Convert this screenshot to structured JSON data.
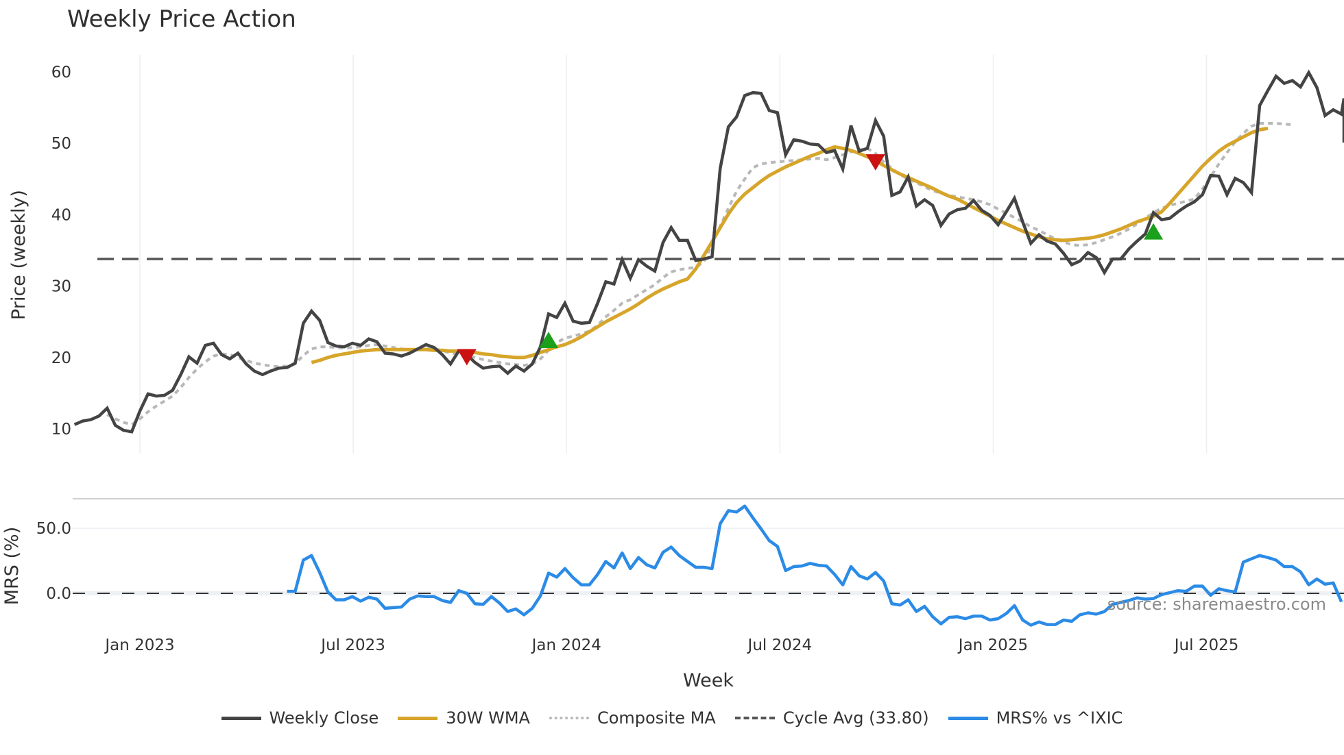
{
  "title": "Weekly Price Action",
  "source_note": "source: sharemaestro.com",
  "legend": [
    {
      "label": "Weekly Close",
      "color": "#444444",
      "style": "solid"
    },
    {
      "label": "30W WMA",
      "color": "#d6a52a",
      "style": "solid"
    },
    {
      "label": "Composite MA",
      "color": "#b8b8b8",
      "style": "dotted"
    },
    {
      "label": "Cycle Avg (33.80)",
      "color": "#555555",
      "style": "dashed"
    },
    {
      "label": "MRS% vs ^IXIC",
      "color": "#2b8be6",
      "style": "solid"
    }
  ],
  "chart_data": [
    {
      "type": "line",
      "title": "Weekly Price Action",
      "xlabel": "Week",
      "ylabel": "Price (weekly)",
      "ylim": [
        8,
        62
      ],
      "yticks": [
        10,
        20,
        30,
        40,
        50,
        60
      ],
      "xticks": [
        "Jan 2023",
        "Jul 2023",
        "Jan 2024",
        "Jul 2024",
        "Jan 2025",
        "Jul 2025"
      ],
      "x_start_week_offset": -8,
      "grid": true,
      "series": [
        {
          "name": "Weekly Close",
          "color": "#444444",
          "values": [
            10.6,
            11.1,
            11.3,
            11.8,
            12.9,
            10.5,
            9.8,
            9.6,
            12.5,
            14.9,
            14.6,
            14.7,
            15.4,
            17.6,
            20.1,
            19.2,
            21.7,
            22.0,
            20.4,
            19.8,
            20.6,
            19.1,
            18.1,
            17.6,
            18.1,
            18.5,
            18.6,
            19.2,
            24.8,
            26.5,
            25.2,
            22.1,
            21.6,
            21.5,
            22.0,
            21.7,
            22.6,
            22.2,
            20.6,
            20.5,
            20.2,
            20.6,
            21.2,
            21.8,
            21.4,
            20.4,
            19.1,
            20.9,
            20.4,
            19.3,
            18.5,
            18.7,
            18.8,
            17.8,
            18.8,
            18.1,
            19.1,
            21.5,
            26.1,
            25.6,
            27.6,
            25.1,
            24.8,
            24.9,
            27.6,
            30.6,
            30.3,
            33.7,
            31.1,
            33.7,
            32.8,
            32.1,
            36.1,
            38.2,
            36.4,
            36.4,
            33.6,
            33.8,
            34.1,
            46.5,
            52.3,
            53.7,
            56.7,
            57.1,
            57.0,
            54.6,
            54.3,
            48.4,
            50.5,
            50.3,
            49.9,
            49.8,
            48.7,
            49.0,
            46.4,
            52.5,
            48.9,
            49.3,
            53.2,
            51.0,
            42.7,
            43.2,
            45.3,
            41.2,
            42.1,
            41.3,
            38.5,
            40.1,
            40.7,
            40.9,
            42.0,
            40.6,
            39.9,
            38.6,
            40.4,
            42.3,
            39.0,
            36.0,
            37.2,
            36.3,
            35.9,
            34.6,
            33.0,
            33.5,
            34.7,
            34.0,
            31.9,
            33.8,
            33.8,
            35.2,
            36.3,
            37.3,
            40.3,
            39.3,
            39.5,
            40.4,
            41.2,
            41.8,
            42.8,
            45.5,
            45.4,
            42.8,
            45.1,
            44.5,
            43.1,
            55.3,
            57.4,
            59.4,
            58.4,
            58.8,
            57.9,
            59.9,
            57.8,
            53.9,
            54.7,
            54.1,
            56.3,
            50.1
          ]
        },
        {
          "name": "30W WMA",
          "color": "#d6a52a",
          "values": [
            null,
            null,
            null,
            null,
            null,
            null,
            null,
            null,
            null,
            null,
            null,
            null,
            null,
            null,
            null,
            null,
            null,
            null,
            null,
            null,
            null,
            null,
            null,
            null,
            null,
            null,
            null,
            null,
            null,
            19.3,
            19.6,
            20.0,
            20.3,
            20.5,
            20.7,
            20.9,
            21.0,
            21.1,
            21.1,
            21.1,
            21.1,
            21.1,
            21.1,
            21.1,
            21.0,
            21.0,
            20.9,
            20.9,
            20.8,
            20.7,
            20.5,
            20.4,
            20.2,
            20.1,
            20.0,
            20.0,
            20.3,
            20.7,
            21.1,
            21.5,
            21.8,
            22.3,
            22.9,
            23.6,
            24.3,
            25.0,
            25.6,
            26.2,
            26.8,
            27.5,
            28.3,
            29.0,
            29.6,
            30.1,
            30.6,
            31.0,
            32.4,
            34.3,
            36.2,
            38.2,
            40.1,
            41.7,
            42.9,
            43.8,
            44.7,
            45.5,
            46.1,
            46.7,
            47.2,
            47.7,
            48.2,
            48.6,
            49.1,
            49.5,
            49.3,
            49.0,
            48.6,
            48.1,
            47.6,
            46.9,
            46.3,
            45.7,
            45.2,
            44.7,
            44.2,
            43.7,
            43.1,
            42.6,
            42.2,
            41.6,
            41.0,
            40.4,
            39.8,
            39.2,
            38.7,
            38.2,
            37.7,
            37.3,
            36.9,
            36.6,
            36.5,
            36.4,
            36.5,
            36.6,
            36.7,
            36.9,
            37.2,
            37.6,
            38.0,
            38.5,
            39.0,
            39.4,
            39.8,
            40.4,
            41.6,
            42.9,
            44.2,
            45.5,
            46.8,
            47.9,
            48.9,
            49.7,
            50.3,
            50.9,
            51.5,
            51.9,
            52.1
          ]
        },
        {
          "name": "Composite MA",
          "color": "#b8b8b8",
          "values": [
            null,
            null,
            null,
            null,
            12.0,
            11.4,
            10.9,
            10.6,
            11.4,
            12.4,
            13.2,
            13.9,
            14.6,
            15.8,
            17.2,
            18.4,
            19.4,
            20.2,
            20.5,
            20.4,
            20.0,
            19.6,
            19.2,
            19.0,
            18.8,
            18.7,
            18.8,
            19.1,
            20.3,
            21.2,
            21.5,
            21.5,
            21.4,
            21.3,
            21.4,
            21.5,
            21.7,
            21.8,
            21.6,
            21.4,
            21.2,
            21.1,
            21.1,
            21.2,
            21.2,
            21.0,
            20.6,
            20.5,
            20.3,
            20.0,
            19.7,
            19.5,
            19.3,
            19.1,
            19.0,
            18.9,
            19.1,
            19.8,
            21.0,
            22.1,
            22.7,
            23.0,
            23.3,
            23.7,
            24.5,
            25.7,
            26.6,
            27.6,
            28.1,
            28.8,
            29.5,
            30.2,
            31.2,
            32.0,
            32.3,
            32.5,
            32.6,
            33.4,
            35.8,
            38.4,
            40.9,
            43.3,
            45.0,
            46.6,
            47.1,
            47.3,
            47.4,
            47.5,
            47.6,
            47.7,
            47.8,
            47.9,
            47.7,
            48.0,
            48.4,
            48.8,
            49.1,
            49.3,
            48.6,
            47.4,
            46.5,
            45.6,
            45.0,
            44.5,
            43.9,
            43.4,
            43.0,
            42.7,
            42.5,
            42.3,
            42.1,
            41.8,
            41.4,
            40.8,
            40.2,
            39.6,
            39.0,
            38.3,
            37.8,
            37.2,
            36.6,
            36.2,
            35.8,
            35.7,
            35.8,
            36.1,
            36.5,
            36.9,
            37.4,
            38.0,
            38.7,
            39.5,
            40.3,
            40.9,
            41.3,
            41.6,
            41.9,
            42.2,
            43.6,
            45.3,
            47.1,
            48.7,
            50.2,
            51.4,
            52.4,
            52.8,
            52.8,
            52.8,
            52.7,
            52.6
          ]
        },
        {
          "name": "Cycle Avg (33.80)",
          "color": "#555555",
          "constant": 33.8
        },
        {
          "name": "Signals",
          "points": [
            {
              "type": "sell",
              "shape": "down-triangle",
              "color": "#cc1111",
              "week_index": 48,
              "value": 20.1
            },
            {
              "type": "buy",
              "shape": "up-triangle",
              "color": "#1aa01a",
              "week_index": 58,
              "value": 22.4
            },
            {
              "type": "sell",
              "shape": "down-triangle",
              "color": "#cc1111",
              "week_index": 98,
              "value": 47.4
            },
            {
              "type": "buy",
              "shape": "up-triangle",
              "color": "#1aa01a",
              "week_index": 132,
              "value": 37.6
            }
          ]
        }
      ]
    },
    {
      "type": "line",
      "title": "",
      "xlabel": "Week",
      "ylabel": "MRS (%)",
      "ylim": [
        -28,
        75
      ],
      "yticks": [
        0.0,
        50.0
      ],
      "ytick_labels": [
        "0.0",
        "50.0"
      ],
      "series": [
        {
          "name": "MRS% vs ^IXIC",
          "color": "#2b8be6",
          "values": [
            null,
            null,
            null,
            null,
            null,
            null,
            null,
            null,
            null,
            null,
            null,
            null,
            null,
            null,
            null,
            null,
            null,
            null,
            null,
            null,
            null,
            null,
            null,
            null,
            null,
            null,
            1.5,
            1.5,
            25.5,
            29.0,
            16.0,
            1.0,
            -5.0,
            -5.0,
            -2.5,
            -6.0,
            -3.0,
            -4.5,
            -11.5,
            -11.0,
            -10.5,
            -4.5,
            -2.0,
            -2.5,
            -2.5,
            -5.5,
            -7.0,
            2.0,
            0.0,
            -8.0,
            -8.5,
            -2.5,
            -7.5,
            -14.0,
            -12.0,
            -16.5,
            -11.5,
            -2.0,
            15.5,
            12.5,
            19.0,
            12.0,
            6.5,
            6.5,
            14.5,
            24.5,
            19.5,
            31.0,
            19.0,
            27.5,
            22.0,
            19.5,
            31.5,
            35.5,
            29.0,
            24.5,
            20.0,
            20.0,
            19.0,
            53.5,
            63.5,
            62.5,
            67.0,
            58.0,
            49.5,
            40.5,
            36.0,
            17.5,
            20.5,
            21.0,
            23.0,
            21.5,
            21.0,
            14.5,
            6.5,
            20.5,
            13.5,
            11.0,
            16.0,
            9.5,
            -8.0,
            -9.0,
            -5.0,
            -14.0,
            -10.0,
            -18.0,
            -23.5,
            -18.5,
            -18.0,
            -19.5,
            -17.5,
            -17.5,
            -20.5,
            -19.5,
            -15.5,
            -9.5,
            -20.5,
            -24.5,
            -22.0,
            -24.0,
            -24.0,
            -20.5,
            -21.5,
            -16.5,
            -15.0,
            -16.0,
            -14.0,
            -8.5,
            -7.0,
            -5.5,
            -3.5,
            -4.5,
            -4.0,
            -1.0,
            0.5,
            2.0,
            1.5,
            5.5,
            5.5,
            -1.5,
            3.5,
            2.0,
            1.0,
            24.0,
            26.5,
            29.0,
            27.5,
            25.5,
            20.5,
            20.5,
            16.5,
            6.5,
            11.0,
            7.0,
            8.0,
            -6.5
          ]
        },
        {
          "name": "Zero line",
          "constant": 0.0,
          "color": "#333333",
          "style": "dashed"
        }
      ]
    }
  ],
  "axes": {
    "price_ylabel": "Price (weekly)",
    "mrs_ylabel": "MRS (%)",
    "xlabel": "Week",
    "price_yticks": [
      "10",
      "20",
      "30",
      "40",
      "50",
      "60"
    ],
    "mrs_yticks": [
      "0.0",
      "50.0"
    ],
    "xticks": [
      "Jan 2023",
      "Jul 2023",
      "Jan 2024",
      "Jul 2024",
      "Jan 2025",
      "Jul 2025"
    ]
  }
}
